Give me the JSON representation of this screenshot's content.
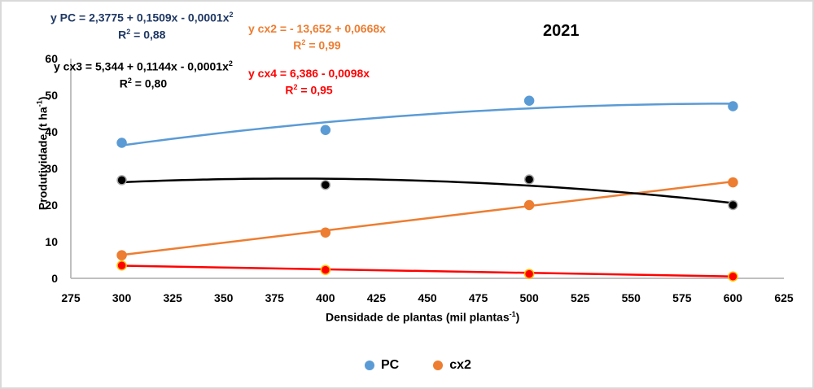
{
  "chart_data": {
    "type": "scatter",
    "title": "2021",
    "xlabel": "Densidade de plantas (mil plantas",
    "xlabel_sup": "-1",
    "xlabel_end": ")",
    "ylabel": "Produtividade (t ha",
    "ylabel_sup": "-1",
    "ylabel_end": ")",
    "xlim": [
      275,
      625
    ],
    "ylim": [
      0,
      60
    ],
    "x_ticks": [
      "275",
      "300",
      "325",
      "350",
      "375",
      "400",
      "425",
      "450",
      "475",
      "500",
      "525",
      "550",
      "575",
      "600",
      "625"
    ],
    "y_ticks": [
      "0",
      "10",
      "20",
      "30",
      "40",
      "50",
      "60"
    ],
    "grid": false,
    "legend_position": "bottom",
    "x": [
      300,
      400,
      500,
      600
    ],
    "series": [
      {
        "name": "PC",
        "color": "#5b9bd5",
        "marker_edge": "#5b9bd5",
        "values": [
          37.0,
          40.5,
          48.5,
          47.0
        ],
        "trend": {
          "type": "poly2",
          "a": 2.3775,
          "b": 0.1509,
          "c": -0.0001,
          "equation": "y PC = 2,3775 + 0,1509x  - 0,0001x",
          "r2": "R² = 0,88"
        }
      },
      {
        "name": "cx2",
        "color": "#ed7d31",
        "marker_edge": "#ed7d31",
        "values": [
          6.3,
          12.5,
          20.0,
          26.2
        ],
        "trend": {
          "type": "linear",
          "a": -13.652,
          "b": 0.0668,
          "equation": "y cx2 = - 13,652 + 0,0668x",
          "r2": "R² = 0,99"
        }
      },
      {
        "name": "cx3",
        "color": "#000000",
        "marker_edge": "#a6a6a6",
        "values": [
          26.8,
          25.5,
          27.0,
          20.0
        ],
        "trend": {
          "type": "poly2",
          "a": 5.344,
          "b": 0.1144,
          "c": -0.0001,
          "equation": "y cx3 = 5,344 + 0,1144x - 0,0001x",
          "r2": "R² = 0,80"
        }
      },
      {
        "name": "cx4",
        "color": "#ff0000",
        "marker_edge": "#ffc000",
        "values": [
          3.5,
          2.3,
          1.2,
          0.5
        ],
        "trend": {
          "type": "linear",
          "a": 6.386,
          "b": -0.0098,
          "equation": "y cx4 = 6,386 - 0,0098x",
          "r2": "R² = 0,95"
        }
      }
    ],
    "legend_entries": [
      "PC",
      "cx2"
    ]
  },
  "equations": {
    "pc": {
      "line": "y PC = 2,3775 + 0,1509x  - 0,0001x",
      "sup": "2",
      "r2_pre": "R",
      "r2_sup": "2",
      "r2_post": " = 0,88",
      "color": "#1f3864"
    },
    "cx2": {
      "line": "y cx2 = - 13,652 + 0,0668x",
      "r2_pre": "R",
      "r2_sup": "2",
      "r2_post": " = 0,99",
      "color": "#ed7d31"
    },
    "cx3": {
      "line": "y cx3 = 5,344 + 0,1144x - 0,0001x",
      "sup": "2",
      "r2_pre": "R",
      "r2_sup": "2",
      "r2_post": " = 0,80",
      "color": "#000000"
    },
    "cx4": {
      "line": "y cx4 = 6,386 - 0,0098x",
      "r2_pre": "R",
      "r2_sup": "2",
      "r2_post": " = 0,95",
      "color": "#ff0000"
    }
  }
}
